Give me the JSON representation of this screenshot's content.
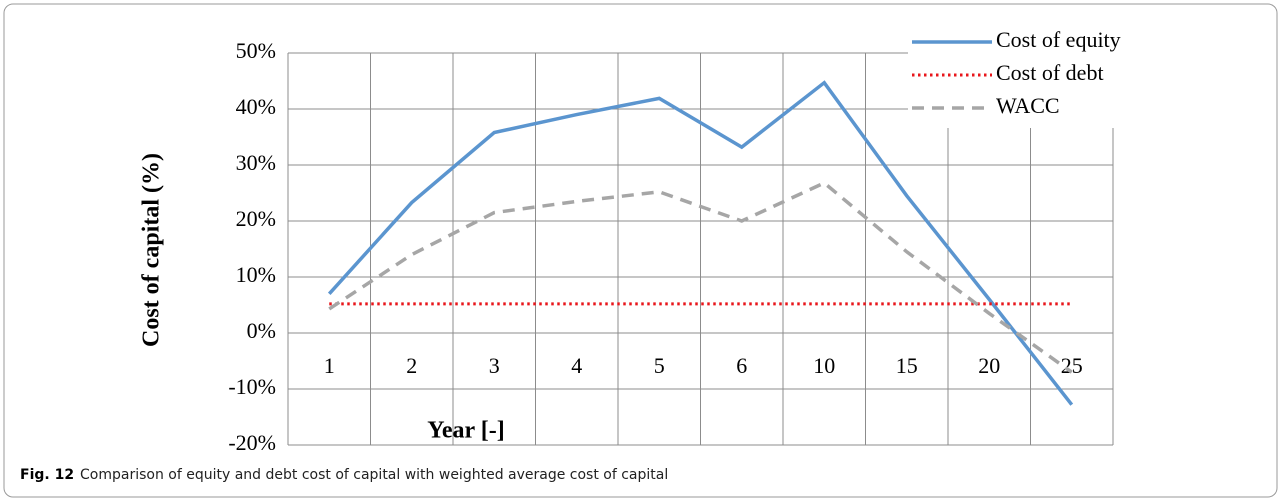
{
  "chart_data": {
    "type": "line",
    "y_axis_label": "Cost of capital (%)",
    "x_axis_label": "Year [-]",
    "categories": [
      "1",
      "2",
      "3",
      "4",
      "5",
      "6",
      "10",
      "15",
      "20",
      "25"
    ],
    "series": [
      {
        "name": "Cost of equity",
        "color": "#5b95cf",
        "style": "solid",
        "values": [
          7,
          23.3,
          35.8,
          39,
          41.9,
          33.2,
          44.7,
          24.5,
          6,
          -12.8
        ]
      },
      {
        "name": "Cost of debt",
        "color": "#e8161b",
        "style": "dotted",
        "values": [
          5.2,
          5.2,
          5.2,
          5.2,
          5.2,
          5.2,
          5.2,
          5.2,
          5.2,
          5.2
        ]
      },
      {
        "name": "WACC",
        "color": "#a6a6a6",
        "style": "dashed",
        "values": [
          4.3,
          14,
          21.5,
          23.5,
          25.2,
          20,
          26.8,
          14.5,
          3.5,
          -7
        ]
      }
    ],
    "ylim": [
      -20,
      50
    ],
    "yticks": [
      {
        "value": -20,
        "label": "-20%"
      },
      {
        "value": -10,
        "label": "-10%"
      },
      {
        "value": 0,
        "label": "0%"
      },
      {
        "value": 10,
        "label": "10%"
      },
      {
        "value": 20,
        "label": "20%"
      },
      {
        "value": 30,
        "label": "30%"
      },
      {
        "value": 40,
        "label": "40%"
      },
      {
        "value": 50,
        "label": "50%"
      }
    ],
    "grid": true,
    "legend": "top-right"
  },
  "caption": {
    "label": "Fig. 12",
    "text": "Comparison of equity and debt cost of capital with weighted average cost of capital"
  }
}
